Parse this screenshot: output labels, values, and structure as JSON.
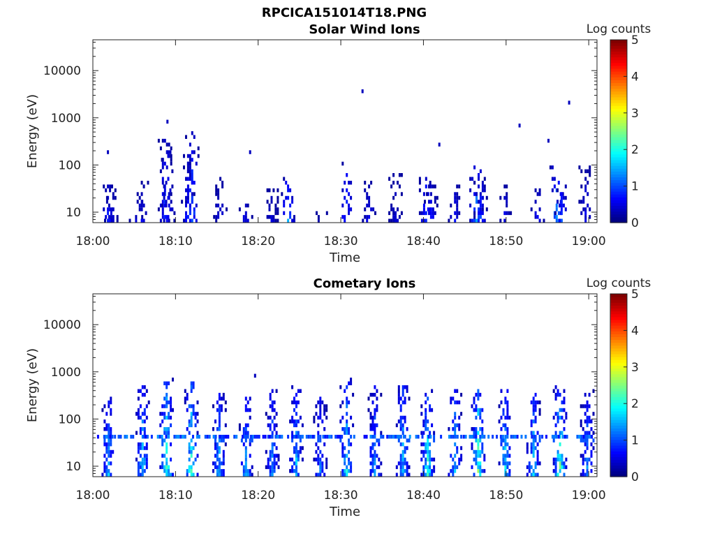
{
  "figure": {
    "title": "RPCICA151014T18.PNG"
  },
  "chart_data": [
    {
      "type": "heatmap",
      "title": "Solar Wind Ions",
      "xlabel": "Time",
      "ylabel": "Energy (eV)",
      "x_ticks": [
        "18:00",
        "18:10",
        "18:20",
        "18:30",
        "18:40",
        "18:50",
        "19:00"
      ],
      "x_range_minutes": [
        0,
        61
      ],
      "y_scale": "log",
      "y_ticks": [
        "10",
        "100",
        "1000",
        "10000"
      ],
      "y_range": [
        6,
        45000
      ],
      "colorbar": {
        "label": "Log counts",
        "range": [
          0,
          5
        ],
        "ticks": [
          "0",
          "1",
          "2",
          "3",
          "4",
          "5"
        ],
        "colormap": "jet"
      },
      "bursts": [
        {
          "t": 1.7,
          "emax": 40,
          "lvl": 0.9
        },
        {
          "t": 2.1,
          "emax": 40,
          "lvl": 0.6
        },
        {
          "t": 5.1,
          "emax": 18,
          "lvl": 0.5
        },
        {
          "t": 5.8,
          "emax": 45,
          "lvl": 0.6
        },
        {
          "t": 8.6,
          "emax": 350,
          "lvl": 1.0
        },
        {
          "t": 9.0,
          "emax": 200,
          "lvl": 0.9
        },
        {
          "t": 11.4,
          "emax": 200,
          "lvl": 0.9
        },
        {
          "t": 11.9,
          "emax": 400,
          "lvl": 1.2
        },
        {
          "t": 15.3,
          "emax": 60,
          "lvl": 0.6
        },
        {
          "t": 18.4,
          "emax": 16,
          "lvl": 0.7
        },
        {
          "t": 21.5,
          "emax": 30,
          "lvl": 0.5
        },
        {
          "t": 23.5,
          "emax": 55,
          "lvl": 1.4
        },
        {
          "t": 27.7,
          "emax": 10,
          "lvl": 0.5
        },
        {
          "t": 30.6,
          "emax": 110,
          "lvl": 1.1
        },
        {
          "t": 33.3,
          "emax": 50,
          "lvl": 0.7
        },
        {
          "t": 36.5,
          "emax": 70,
          "lvl": 0.5
        },
        {
          "t": 40.2,
          "emax": 80,
          "lvl": 1.1
        },
        {
          "t": 40.8,
          "emax": 40,
          "lvl": 0.8
        },
        {
          "t": 43.7,
          "emax": 40,
          "lvl": 0.7
        },
        {
          "t": 46.3,
          "emax": 100,
          "lvl": 1.6
        },
        {
          "t": 46.8,
          "emax": 60,
          "lvl": 1.0
        },
        {
          "t": 49.7,
          "emax": 40,
          "lvl": 0.6
        },
        {
          "t": 53.7,
          "emax": 40,
          "lvl": 0.7
        },
        {
          "t": 56.0,
          "emax": 120,
          "lvl": 1.5
        },
        {
          "t": 56.6,
          "emax": 60,
          "lvl": 1.0
        },
        {
          "t": 59.5,
          "emax": 100,
          "lvl": 0.6
        }
      ],
      "isolated": [
        {
          "t": 1.7,
          "e": 180
        },
        {
          "t": 8.9,
          "e": 850
        },
        {
          "t": 11.9,
          "e": 500
        },
        {
          "t": 32.5,
          "e": 3800
        },
        {
          "t": 51.5,
          "e": 750
        },
        {
          "t": 57.5,
          "e": 2000
        },
        {
          "t": 41.8,
          "e": 270
        },
        {
          "t": 18.9,
          "e": 180
        },
        {
          "t": 55.0,
          "e": 320
        }
      ]
    },
    {
      "type": "heatmap",
      "title": "Cometary Ions",
      "xlabel": "Time",
      "ylabel": "Energy (eV)",
      "x_ticks": [
        "18:00",
        "18:10",
        "18:20",
        "18:30",
        "18:40",
        "18:50",
        "19:00"
      ],
      "x_range_minutes": [
        0,
        61
      ],
      "y_scale": "log",
      "y_ticks": [
        "10",
        "100",
        "1000",
        "10000"
      ],
      "y_range": [
        6,
        45000
      ],
      "colorbar": {
        "label": "Log counts",
        "range": [
          0,
          5
        ],
        "ticks": [
          "0",
          "1",
          "2",
          "3",
          "4",
          "5"
        ],
        "colormap": "jet"
      },
      "band_energy_eV": 40,
      "bursts": [
        {
          "t": 1.8,
          "emax": 300,
          "lvl": 1.6
        },
        {
          "t": 5.9,
          "emax": 500,
          "lvl": 1.9
        },
        {
          "t": 8.8,
          "emax": 800,
          "lvl": 2.5
        },
        {
          "t": 11.8,
          "emax": 600,
          "lvl": 2.5
        },
        {
          "t": 15.2,
          "emax": 400,
          "lvl": 1.8
        },
        {
          "t": 18.4,
          "emax": 300,
          "lvl": 1.7
        },
        {
          "t": 21.6,
          "emax": 400,
          "lvl": 1.5
        },
        {
          "t": 24.5,
          "emax": 500,
          "lvl": 1.8
        },
        {
          "t": 27.4,
          "emax": 300,
          "lvl": 1.3
        },
        {
          "t": 30.6,
          "emax": 700,
          "lvl": 2.0
        },
        {
          "t": 34.0,
          "emax": 500,
          "lvl": 1.5
        },
        {
          "t": 37.4,
          "emax": 600,
          "lvl": 1.8
        },
        {
          "t": 40.4,
          "emax": 450,
          "lvl": 2.3
        },
        {
          "t": 43.7,
          "emax": 450,
          "lvl": 1.9
        },
        {
          "t": 46.5,
          "emax": 450,
          "lvl": 2.7
        },
        {
          "t": 49.8,
          "emax": 400,
          "lvl": 2.0
        },
        {
          "t": 53.2,
          "emax": 400,
          "lvl": 1.9
        },
        {
          "t": 56.4,
          "emax": 500,
          "lvl": 2.6
        },
        {
          "t": 59.7,
          "emax": 450,
          "lvl": 1.5
        }
      ],
      "isolated": [
        {
          "t": 19.5,
          "e": 830
        }
      ]
    }
  ]
}
